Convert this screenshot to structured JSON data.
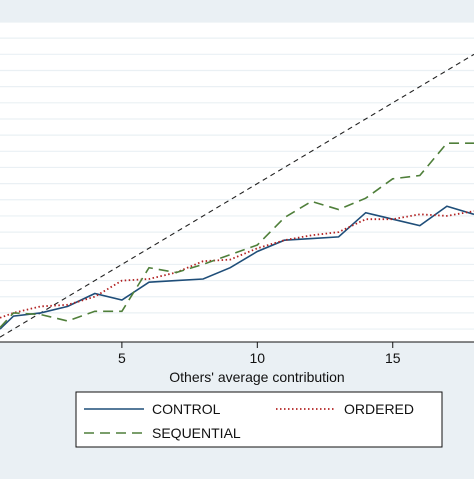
{
  "chart_data": {
    "type": "line",
    "xlabel": "Others' average contribution",
    "ylabel": "",
    "xlim": [
      0.5,
      18
    ],
    "ylim": [
      0.2,
      20
    ],
    "xticks": [
      5,
      10,
      15
    ],
    "grid": true,
    "legend_position": "bottom",
    "colors": {
      "background": "#eaf0f4",
      "plot_bg": "#ffffff",
      "grid": "#eaf0f4",
      "control": "#1f4e79",
      "ordered": "#b22222",
      "sequential": "#4f7f3a",
      "reference": "#222222"
    },
    "reference_line": {
      "x": [
        0.5,
        18
      ],
      "y": [
        0.5,
        18
      ]
    },
    "series": [
      {
        "name": "CONTROL",
        "style": "solid",
        "x": [
          0.5,
          1,
          2,
          3,
          4,
          5,
          6,
          7,
          8,
          9,
          10,
          11,
          12,
          13,
          14,
          15,
          16,
          17,
          18
        ],
        "y": [
          1.0,
          1.8,
          2.0,
          2.4,
          3.2,
          2.8,
          3.9,
          4.0,
          4.1,
          4.8,
          5.8,
          6.5,
          6.6,
          6.7,
          8.2,
          7.8,
          7.4,
          8.6,
          8.1
        ]
      },
      {
        "name": "ORDERED",
        "style": "dotted",
        "x": [
          0.5,
          1,
          2,
          3,
          4,
          5,
          6,
          7,
          8,
          9,
          10,
          11,
          12,
          13,
          14,
          15,
          16,
          17,
          18
        ],
        "y": [
          1.7,
          2.0,
          2.4,
          2.5,
          3.0,
          4.0,
          4.1,
          4.5,
          5.2,
          5.3,
          6.0,
          6.5,
          6.8,
          7.0,
          7.8,
          7.8,
          8.1,
          8.0,
          8.3
        ]
      },
      {
        "name": "SEQUENTIAL",
        "style": "dashed",
        "x": [
          0.5,
          1,
          2,
          3,
          4,
          5,
          6,
          7,
          8,
          9,
          10,
          11,
          12,
          13,
          14,
          15,
          16,
          17,
          18
        ],
        "y": [
          1.1,
          2.0,
          1.9,
          1.5,
          2.1,
          2.1,
          4.8,
          4.5,
          5.0,
          5.6,
          6.2,
          7.9,
          8.9,
          8.4,
          9.1,
          10.3,
          10.5,
          12.5,
          12.5
        ]
      }
    ]
  }
}
